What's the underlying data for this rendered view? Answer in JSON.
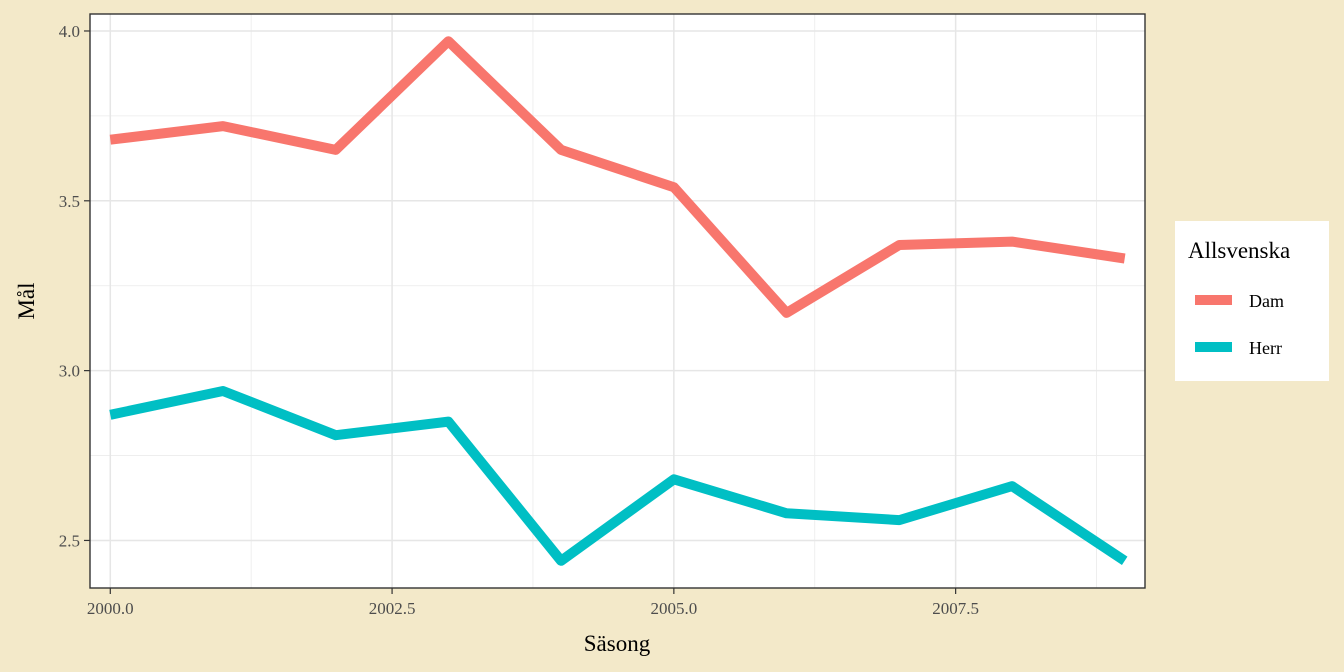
{
  "chart_data": {
    "type": "line",
    "title": "",
    "xlabel": "Säsong",
    "ylabel": "Mål",
    "xlim": [
      1999.82,
      2009.18
    ],
    "ylim": [
      2.36,
      4.05
    ],
    "x_ticks": [
      2000.0,
      2002.5,
      2005.0,
      2007.5
    ],
    "x_tick_labels": [
      "2000.0",
      "2002.5",
      "2005.0",
      "2007.5"
    ],
    "y_ticks": [
      2.5,
      3.0,
      3.5,
      4.0
    ],
    "y_tick_labels": [
      "2.5",
      "3.0",
      "3.5",
      "4.0"
    ],
    "grid": true,
    "legend": {
      "title": "Allsvenska",
      "position": "right"
    },
    "x": [
      2000,
      2001,
      2002,
      2003,
      2004,
      2005,
      2006,
      2007,
      2008,
      2009
    ],
    "series": [
      {
        "name": "Dam",
        "color": "#f8766d",
        "values": [
          3.68,
          3.72,
          3.65,
          3.97,
          3.65,
          3.54,
          3.17,
          3.37,
          3.38,
          3.33
        ]
      },
      {
        "name": "Herr",
        "color": "#00bfc4",
        "values": [
          2.87,
          2.94,
          2.81,
          2.85,
          2.44,
          2.68,
          2.58,
          2.56,
          2.66,
          2.44
        ]
      }
    ]
  }
}
